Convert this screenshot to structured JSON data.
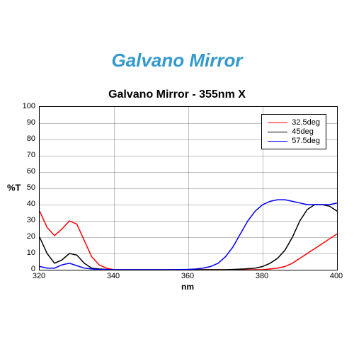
{
  "page_title": "Galvano Mirror",
  "chart": {
    "type": "line",
    "title": "Galvano Mirror - 355nm X",
    "title_fontsize": 16,
    "xlabel": "nm",
    "ylabel": "%T",
    "label_fontsize": 13,
    "xlim": [
      320,
      400
    ],
    "ylim": [
      0,
      100
    ],
    "xtick_step": 20,
    "ytick_step": 10,
    "xticks": [
      320,
      340,
      360,
      380,
      400
    ],
    "yticks": [
      0,
      10,
      20,
      30,
      40,
      50,
      60,
      70,
      80,
      90,
      100
    ],
    "background_color": "#ffffff",
    "grid_color": "#000000",
    "grid_opacity": 0.25,
    "page_title_color": "#3399cc",
    "line_width": 1.5,
    "legend_position": "top-right",
    "series": [
      {
        "name": "32.5deg",
        "color": "#ff0000",
        "x": [
          320,
          322,
          324,
          326,
          328,
          330,
          332,
          334,
          336,
          338,
          340,
          345,
          350,
          355,
          360,
          365,
          370,
          375,
          380,
          382,
          384,
          386,
          388,
          390,
          392,
          394,
          396,
          398,
          400
        ],
        "y": [
          36,
          26,
          21,
          25,
          30,
          28,
          18,
          8,
          3,
          1,
          0,
          0,
          0,
          0,
          0,
          0,
          0,
          0,
          0,
          0.5,
          1,
          2,
          4,
          7,
          10,
          13,
          16,
          19,
          22
        ]
      },
      {
        "name": "45deg",
        "color": "#000000",
        "x": [
          320,
          322,
          324,
          326,
          328,
          330,
          332,
          334,
          336,
          338,
          340,
          345,
          350,
          355,
          360,
          365,
          370,
          375,
          378,
          380,
          382,
          384,
          386,
          388,
          390,
          392,
          394,
          396,
          398,
          400
        ],
        "y": [
          20,
          10,
          4,
          6,
          10,
          9,
          4,
          1,
          0.5,
          0.2,
          0,
          0,
          0,
          0,
          0,
          0,
          0,
          0.5,
          1,
          2,
          4,
          7,
          12,
          20,
          30,
          37,
          40,
          40,
          39,
          36
        ]
      },
      {
        "name": "57.5deg",
        "color": "#0000ff",
        "x": [
          320,
          322,
          324,
          326,
          328,
          330,
          332,
          334,
          336,
          338,
          340,
          345,
          350,
          355,
          360,
          362,
          364,
          366,
          368,
          370,
          372,
          374,
          376,
          378,
          380,
          382,
          384,
          386,
          388,
          390,
          392,
          394,
          396,
          398,
          400
        ],
        "y": [
          2,
          1,
          1,
          3,
          4,
          2.5,
          1,
          0.5,
          0.2,
          0.1,
          0,
          0,
          0,
          0,
          0.2,
          0.5,
          1,
          2,
          4,
          8,
          14,
          22,
          30,
          36,
          40,
          42,
          43,
          43,
          42,
          41,
          40,
          40,
          40,
          40,
          41
        ]
      }
    ]
  }
}
